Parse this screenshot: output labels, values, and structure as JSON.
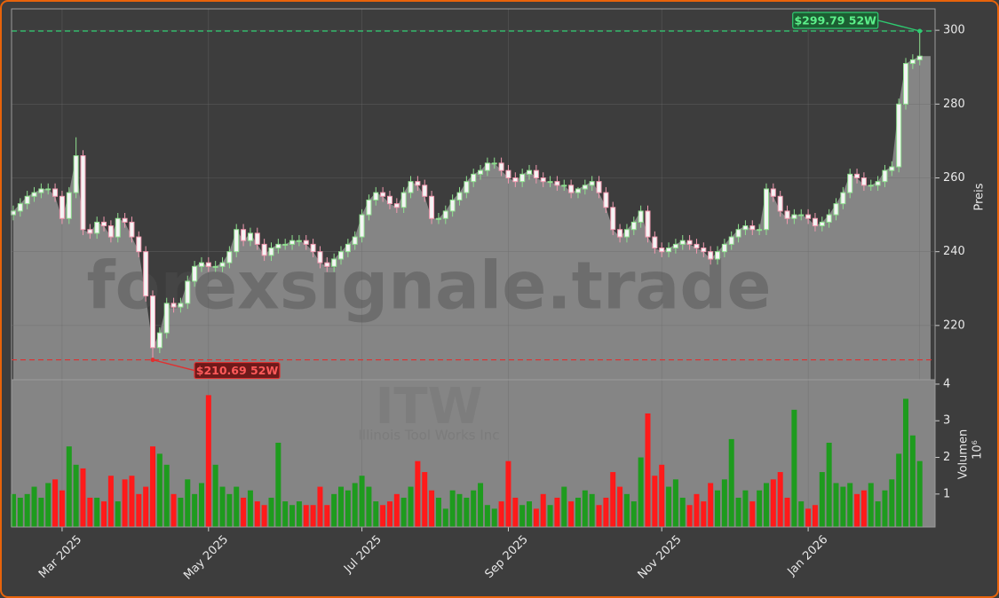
{
  "chart_data": [
    {
      "type": "candlestick",
      "watermark": "forexsignale.trade",
      "ylabel": "Preis",
      "categories": [
        null,
        null,
        null,
        null,
        null,
        null,
        null,
        "Mar 2025",
        null,
        null,
        null,
        null,
        null,
        null,
        null,
        null,
        null,
        null,
        null,
        null,
        null,
        null,
        null,
        null,
        null,
        null,
        null,
        null,
        "May 2025",
        null,
        null,
        null,
        null,
        null,
        null,
        null,
        null,
        null,
        null,
        null,
        null,
        null,
        null,
        null,
        null,
        null,
        null,
        null,
        null,
        null,
        "Jul 2025",
        null,
        null,
        null,
        null,
        null,
        null,
        null,
        null,
        null,
        null,
        null,
        null,
        null,
        null,
        null,
        null,
        null,
        null,
        null,
        null,
        "Sep 2025",
        null,
        null,
        null,
        null,
        null,
        null,
        null,
        null,
        null,
        null,
        null,
        null,
        null,
        null,
        null,
        null,
        null,
        null,
        null,
        null,
        null,
        "Nov 2025",
        null,
        null,
        null,
        null,
        null,
        null,
        null,
        null,
        null,
        null,
        null,
        null,
        null,
        null,
        null,
        null,
        null,
        null,
        null,
        null,
        "Jan 2026",
        null,
        null,
        null,
        null,
        null,
        null,
        null,
        null,
        null,
        null,
        null,
        null,
        null,
        null,
        null,
        null
      ],
      "open": [
        250,
        251,
        253,
        255,
        256,
        257,
        257,
        255,
        249,
        256,
        266,
        246,
        245,
        248,
        247,
        244,
        249,
        248,
        244,
        240,
        228,
        214,
        218,
        226,
        225,
        226,
        232,
        236,
        237,
        236,
        236,
        237,
        240,
        246,
        243,
        245,
        242,
        239,
        241,
        242,
        242,
        243,
        243,
        242,
        240,
        237,
        236,
        238,
        240,
        242,
        244,
        250,
        254,
        256,
        255,
        253,
        252,
        256,
        259,
        258,
        255,
        249,
        249,
        251,
        254,
        256,
        259,
        261,
        262,
        264,
        264,
        262,
        260,
        259,
        261,
        262,
        260,
        259,
        259,
        258,
        258,
        256,
        257,
        258,
        259,
        256,
        252,
        246,
        244,
        246,
        248,
        251,
        244,
        241,
        240,
        241,
        242,
        243,
        242,
        241,
        240,
        238,
        240,
        242,
        244,
        246,
        247,
        246,
        246,
        257,
        255,
        251,
        249,
        250,
        250,
        249,
        247,
        248,
        250,
        253,
        256,
        261,
        260,
        258,
        258,
        259,
        262,
        263,
        280,
        291,
        292
      ],
      "high": [
        252.5,
        254.5,
        256.5,
        257.5,
        258.5,
        258.5,
        258.5,
        256.5,
        257.5,
        271,
        267.5,
        247.5,
        249.5,
        249.5,
        248.5,
        250.5,
        250.5,
        249.5,
        245.5,
        241.5,
        229.5,
        219.5,
        227.5,
        227.5,
        227.5,
        233.5,
        237.5,
        238.5,
        238.5,
        237.5,
        238.5,
        241.5,
        247.5,
        247.5,
        246.5,
        246.5,
        243.5,
        242.5,
        243.5,
        243.5,
        244.5,
        244.5,
        244.5,
        243.5,
        241.5,
        238.5,
        239.5,
        241.5,
        243.5,
        245.5,
        251.5,
        255.5,
        257.5,
        257.5,
        256.5,
        254.5,
        257.5,
        260.5,
        260.5,
        259.5,
        256.5,
        250.5,
        252.5,
        255.5,
        257.5,
        260.5,
        262.5,
        263.5,
        265.5,
        265.5,
        265.5,
        263.5,
        261.5,
        262.5,
        263.5,
        263.5,
        261.5,
        260.5,
        260.5,
        259.5,
        259.5,
        257.5,
        259.5,
        260.5,
        260.5,
        257.5,
        253.5,
        247.5,
        247.5,
        249.5,
        252.5,
        252.5,
        245.5,
        242.5,
        242.5,
        243.5,
        244.5,
        244.5,
        243.5,
        242.5,
        241.5,
        241.5,
        243.5,
        245.5,
        247.5,
        248.5,
        248.5,
        247.5,
        258.5,
        258.5,
        256.5,
        252.5,
        251.5,
        251.5,
        251.5,
        250.5,
        249.5,
        251.5,
        254.5,
        257.5,
        262.5,
        262.5,
        261.5,
        259.5,
        260.5,
        263.5,
        264.5,
        281.5,
        292.5,
        293.5,
        299.79
      ],
      "low": [
        248.5,
        249.5,
        251.5,
        253.5,
        254.5,
        255.5,
        253.5,
        247.5,
        247.5,
        254.5,
        244.5,
        243.5,
        243.5,
        245.5,
        242.5,
        242.5,
        246.5,
        242.5,
        238.5,
        226.5,
        210.69,
        212.5,
        216.5,
        223.5,
        223.5,
        224.5,
        230.5,
        234.5,
        234.5,
        234.5,
        234.5,
        235.5,
        238.5,
        241.5,
        241.5,
        240.5,
        237.5,
        237.5,
        239.5,
        240.5,
        240.5,
        241.5,
        240.5,
        238.5,
        235.5,
        234.5,
        234.5,
        236.5,
        238.5,
        240.5,
        242.5,
        248.5,
        252.5,
        253.5,
        251.5,
        250.5,
        250.5,
        254.5,
        256.5,
        253.5,
        247.5,
        247.5,
        247.5,
        249.5,
        252.5,
        254.5,
        257.5,
        259.5,
        260.5,
        262.5,
        260.5,
        258.5,
        257.5,
        257.5,
        259.5,
        258.5,
        257.5,
        257.5,
        256.5,
        256.5,
        254.5,
        254.5,
        255.5,
        256.5,
        254.5,
        250.5,
        244.5,
        242.5,
        242.5,
        244.5,
        246.5,
        242.5,
        239.5,
        238.5,
        238.5,
        239.5,
        240.5,
        240.5,
        239.5,
        238.5,
        236.5,
        236.5,
        238.5,
        240.5,
        242.5,
        244.5,
        244.5,
        244.5,
        244.5,
        253.5,
        249.5,
        247.5,
        247.5,
        248.5,
        247.5,
        245.5,
        245.5,
        246.5,
        248.5,
        251.5,
        254.5,
        258.5,
        256.5,
        256.5,
        256.5,
        257.5,
        260.5,
        261.5,
        278.5,
        289.5,
        290.5
      ],
      "close": [
        251,
        253,
        255,
        256,
        257,
        257,
        255,
        249,
        256,
        266,
        246,
        245,
        248,
        247,
        244,
        249,
        248,
        244,
        240,
        228,
        214,
        218,
        226,
        225,
        226,
        232,
        236,
        237,
        236,
        236,
        237,
        240,
        246,
        243,
        245,
        242,
        239,
        241,
        242,
        242,
        243,
        243,
        242,
        240,
        237,
        236,
        238,
        240,
        242,
        244,
        250,
        254,
        256,
        255,
        253,
        252,
        256,
        259,
        258,
        255,
        249,
        249,
        251,
        254,
        256,
        259,
        261,
        262,
        264,
        264,
        262,
        260,
        259,
        261,
        262,
        260,
        259,
        259,
        258,
        258,
        256,
        257,
        258,
        259,
        256,
        252,
        246,
        244,
        246,
        248,
        251,
        244,
        241,
        240,
        241,
        242,
        243,
        242,
        241,
        240,
        238,
        240,
        242,
        244,
        246,
        247,
        246,
        246,
        257,
        255,
        251,
        249,
        250,
        250,
        249,
        247,
        248,
        250,
        253,
        256,
        261,
        260,
        258,
        258,
        259,
        262,
        263,
        280,
        291,
        292,
        293
      ],
      "ylim": [
        205.3,
        305.8
      ],
      "yticks": [
        220,
        240,
        260,
        280,
        300
      ],
      "grid": true,
      "up_color": "#8fe08f",
      "down_color": "#f29ab0",
      "area_color": "#858585",
      "annotations": [
        {
          "text": "$299.79 52W",
          "value": 299.79,
          "color": "#2ecc71"
        },
        {
          "text": "$210.69 52W",
          "value": 210.69,
          "color": "#e03030"
        }
      ]
    },
    {
      "type": "bar",
      "watermark": "ITW",
      "subtitle": "Illinois Tool Works Inc",
      "ylabel": "Volumen",
      "offset_label": "10⁶",
      "values": [
        1.0,
        0.9,
        1.0,
        1.2,
        0.9,
        1.3,
        1.4,
        1.1,
        2.3,
        1.8,
        1.7,
        0.9,
        0.9,
        0.8,
        1.5,
        0.8,
        1.4,
        1.5,
        1.0,
        1.2,
        2.3,
        2.1,
        1.8,
        1.0,
        0.9,
        1.4,
        1.0,
        1.3,
        3.7,
        1.8,
        1.2,
        1.0,
        1.2,
        0.9,
        1.1,
        0.8,
        0.7,
        0.9,
        2.4,
        0.8,
        0.7,
        0.8,
        0.7,
        0.7,
        1.2,
        0.7,
        1.0,
        1.2,
        1.1,
        1.3,
        1.5,
        1.2,
        0.8,
        0.7,
        0.8,
        1.0,
        0.9,
        1.2,
        1.9,
        1.6,
        1.1,
        0.9,
        0.6,
        1.1,
        1.0,
        0.9,
        1.1,
        1.3,
        0.7,
        0.6,
        0.8,
        1.9,
        0.9,
        0.7,
        0.8,
        0.6,
        1.0,
        0.7,
        0.9,
        1.2,
        0.8,
        0.9,
        1.1,
        1.0,
        0.7,
        0.9,
        1.6,
        1.2,
        1.0,
        0.8,
        2.0,
        3.2,
        1.5,
        1.8,
        1.2,
        1.4,
        0.9,
        0.7,
        1.0,
        0.8,
        1.3,
        1.1,
        1.4,
        2.5,
        0.9,
        1.1,
        0.8,
        1.1,
        1.3,
        1.4,
        1.6,
        0.9,
        3.3,
        0.8,
        0.6,
        0.7,
        1.6,
        2.4,
        1.3,
        1.2,
        1.3,
        1.0,
        1.1,
        1.3,
        0.8,
        1.1,
        1.4,
        2.1,
        3.6,
        2.6,
        1.9
      ],
      "ylim": [
        0.1,
        4.12
      ],
      "yticks": [
        1,
        2,
        3,
        4
      ],
      "up_color": "#1e9b1e",
      "down_color": "#ff1a1a"
    }
  ]
}
